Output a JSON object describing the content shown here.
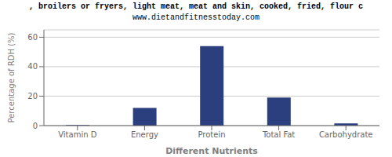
{
  "chart_data": {
    "type": "bar",
    "title": ", broilers or fryers, light meat, meat and skin, cooked, fried, flour c",
    "subtitle": "www.dietandfitnesstoday.com",
    "categories": [
      "Vitamin D",
      "Energy",
      "Protein",
      "Total Fat",
      "Carbohydrate"
    ],
    "values": [
      0.4,
      12,
      54,
      19,
      1.5
    ],
    "color": "#2b3f7e",
    "xlabel": "Different Nutrients",
    "ylabel": "Percentage of RDH (%)",
    "ylim": [
      0,
      65
    ],
    "yticks": [
      0,
      20,
      40,
      60
    ],
    "grid": true
  }
}
